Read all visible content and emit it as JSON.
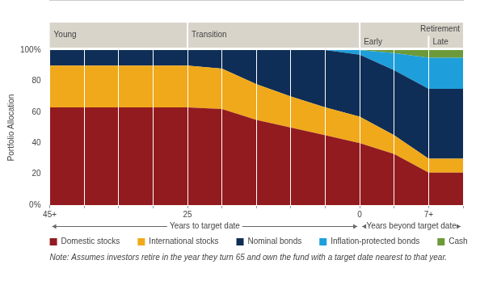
{
  "chart_data": {
    "type": "area",
    "stacked": true,
    "y_label": "Portfolio Allocation",
    "x_labels": [
      "Years to target date",
      "Years beyond target date"
    ],
    "categories": [
      "45+",
      null,
      null,
      null,
      "25",
      null,
      null,
      null,
      null,
      "0",
      null,
      "7+",
      null
    ],
    "series": [
      {
        "name": "Domestic stocks",
        "color": "#921b1f",
        "values": [
          63,
          63,
          63,
          63,
          63,
          62,
          55,
          50,
          45,
          40,
          33,
          21,
          21
        ]
      },
      {
        "name": "International stocks",
        "color": "#f0a91b",
        "values": [
          27,
          27,
          27,
          27,
          27,
          26,
          23,
          20,
          18,
          17,
          12,
          9,
          9
        ]
      },
      {
        "name": "Nominal bonds",
        "color": "#0f2e57",
        "values": [
          10,
          10,
          10,
          10,
          10,
          12,
          22,
          30,
          37,
          40,
          42,
          45,
          45
        ]
      },
      {
        "name": "Inflation-protected bonds",
        "color": "#1e9fdb",
        "values": [
          0,
          0,
          0,
          0,
          0,
          0,
          0,
          0,
          0,
          3,
          11,
          20,
          20
        ]
      },
      {
        "name": "Cash",
        "color": "#6c9a3b",
        "values": [
          0,
          0,
          0,
          0,
          0,
          0,
          0,
          0,
          0,
          0,
          2,
          5,
          5
        ]
      }
    ],
    "ylim": [
      0,
      100
    ],
    "yticks": [
      {
        "value": 0,
        "label": "0%"
      },
      20,
      40,
      60,
      80,
      {
        "value": 100,
        "label": "100%"
      }
    ],
    "grid": "x",
    "legend": "bottom",
    "annotations": {
      "phases": [
        "Young",
        "Transition",
        "Retirement"
      ],
      "retirement_stages": [
        "Early",
        "Late"
      ],
      "note": "Note: Assumes investors retire in the year they turn 65 and own the fund with a target date nearest to that year."
    }
  }
}
